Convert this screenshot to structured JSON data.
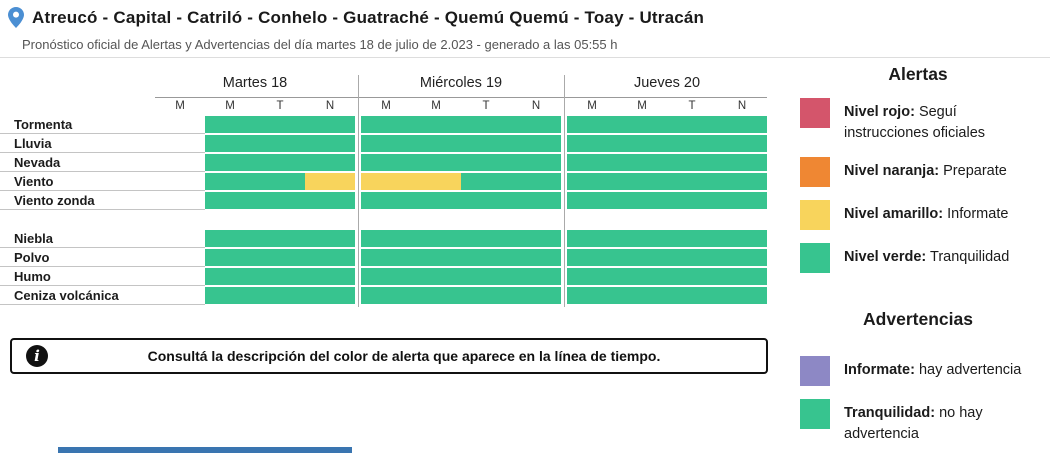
{
  "header": {
    "title": "Atreucó - Capital - Catriló - Conhelo - Guatraché - Quemú Quemú - Toay - Utracán",
    "subtitle": "Pronóstico oficial de Alertas y Advertencias del día martes 18 de julio de 2.023 - generado a las 05:55 h"
  },
  "colors": {
    "green": "#37c48f",
    "yellow": "#f8d45c",
    "red": "#d4556b",
    "orange": "#ef8733",
    "purple": "#8d88c5",
    "pin_blue": "#4b8fd3",
    "bottom_bar_blue": "#3a75b0"
  },
  "timeline": {
    "days": [
      {
        "label": "Martes 18",
        "periods": [
          "M",
          "M",
          "T",
          "N"
        ]
      },
      {
        "label": "Miércoles 19",
        "periods": [
          "M",
          "M",
          "T",
          "N"
        ]
      },
      {
        "label": "Jueves 20",
        "periods": [
          "M",
          "M",
          "T",
          "N"
        ]
      }
    ],
    "rows": [
      {
        "label": "Tormenta",
        "cells": [
          "none",
          "green",
          "green",
          "green",
          "green",
          "green",
          "green",
          "green",
          "green",
          "green",
          "green",
          "green"
        ]
      },
      {
        "label": "Lluvia",
        "cells": [
          "none",
          "green",
          "green",
          "green",
          "green",
          "green",
          "green",
          "green",
          "green",
          "green",
          "green",
          "green"
        ]
      },
      {
        "label": "Nevada",
        "cells": [
          "none",
          "green",
          "green",
          "green",
          "green",
          "green",
          "green",
          "green",
          "green",
          "green",
          "green",
          "green"
        ]
      },
      {
        "label": "Viento",
        "cells": [
          "none",
          "green",
          "green",
          "yellow",
          "yellow",
          "yellow",
          "green",
          "green",
          "green",
          "green",
          "green",
          "green"
        ]
      },
      {
        "label": "Viento zonda",
        "cells": [
          "none",
          "green",
          "green",
          "green",
          "green",
          "green",
          "green",
          "green",
          "green",
          "green",
          "green",
          "green"
        ]
      },
      {
        "label": "Niebla",
        "cells": [
          "none",
          "green",
          "green",
          "green",
          "green",
          "green",
          "green",
          "green",
          "green",
          "green",
          "green",
          "green"
        ]
      },
      {
        "label": "Polvo",
        "cells": [
          "none",
          "green",
          "green",
          "green",
          "green",
          "green",
          "green",
          "green",
          "green",
          "green",
          "green",
          "green"
        ]
      },
      {
        "label": "Humo",
        "cells": [
          "none",
          "green",
          "green",
          "green",
          "green",
          "green",
          "green",
          "green",
          "green",
          "green",
          "green",
          "green"
        ]
      },
      {
        "label": "Ceniza volcánica",
        "cells": [
          "none",
          "green",
          "green",
          "green",
          "green",
          "green",
          "green",
          "green",
          "green",
          "green",
          "green",
          "green"
        ]
      }
    ]
  },
  "notice": {
    "icon_glyph": "i",
    "text": "Consultá la descripción del color de alerta que aparece en la línea de tiempo."
  },
  "alerts_legend": {
    "title": "Alertas",
    "items": [
      {
        "color": "#d4556b",
        "swatch_name": "red-level-swatch",
        "label_bold": "Nivel rojo:",
        "label_rest": "Seguí instrucciones oficiales"
      },
      {
        "color": "#ef8733",
        "swatch_name": "orange-level-swatch",
        "label_bold": "Nivel naranja:",
        "label_rest": "Preparate"
      },
      {
        "color": "#f8d45c",
        "swatch_name": "yellow-level-swatch",
        "label_bold": "Nivel amarillo:",
        "label_rest": "Informate"
      },
      {
        "color": "#37c48f",
        "swatch_name": "green-level-swatch",
        "label_bold": "Nivel verde:",
        "label_rest": "Tranquilidad"
      }
    ]
  },
  "warnings_legend": {
    "title": "Advertencias",
    "items": [
      {
        "color": "#8d88c5",
        "swatch_name": "purple-warning-swatch",
        "label_bold": "Informate:",
        "label_rest": "hay advertencia"
      },
      {
        "color": "#37c48f",
        "swatch_name": "green-warning-swatch",
        "label_bold": "Tranquilidad:",
        "label_rest": "no hay advertencia"
      }
    ]
  }
}
